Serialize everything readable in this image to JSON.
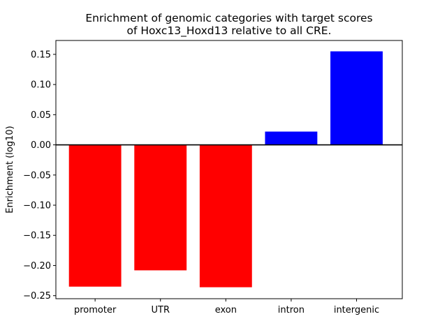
{
  "chart_data": {
    "type": "bar",
    "title_line1": "Enrichment of genomic categories with target scores",
    "title_line2": "of Hoxc13_Hoxd13 relative to all CRE.",
    "xlabel": "",
    "ylabel": "Enrichment (log10)",
    "categories": [
      "promoter",
      "UTR",
      "exon",
      "intron",
      "intergenic"
    ],
    "values": [
      -0.235,
      -0.208,
      -0.236,
      0.022,
      0.155
    ],
    "bar_colors": [
      "#ff0000",
      "#ff0000",
      "#ff0000",
      "#0000ff",
      "#0000ff"
    ],
    "ylim": [
      -0.255,
      0.173
    ],
    "yticks": [
      -0.25,
      -0.2,
      -0.15,
      -0.1,
      -0.05,
      0.0,
      0.05,
      0.1,
      0.15
    ],
    "ytick_labels": [
      "−0.25",
      "−0.20",
      "−0.15",
      "−0.10",
      "−0.05",
      "0.00",
      "0.05",
      "0.10",
      "0.15"
    ],
    "zero_line": true,
    "grid": false
  }
}
